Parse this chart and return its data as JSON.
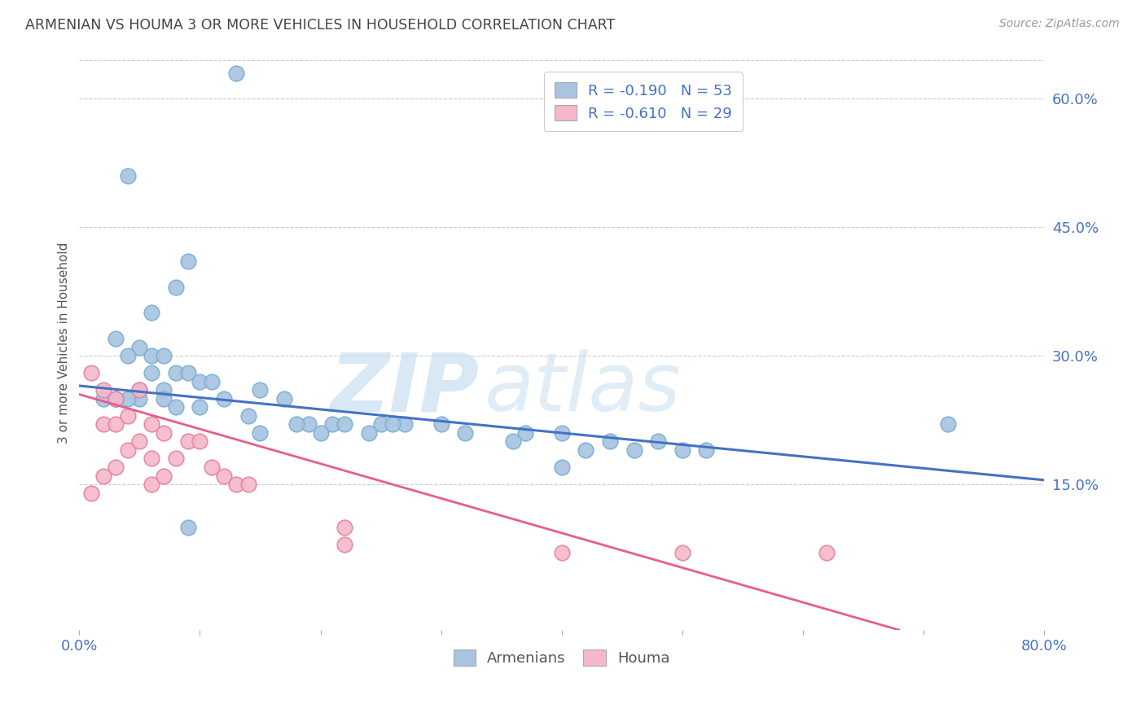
{
  "title": "ARMENIAN VS HOUMA 3 OR MORE VEHICLES IN HOUSEHOLD CORRELATION CHART",
  "source": "Source: ZipAtlas.com",
  "ylabel": "3 or more Vehicles in Household",
  "xlabel": "",
  "xmin": 0.0,
  "xmax": 0.8,
  "ymin": -0.02,
  "ymax": 0.65,
  "x_ticks": [
    0.0,
    0.1,
    0.2,
    0.3,
    0.4,
    0.5,
    0.6,
    0.7,
    0.8
  ],
  "x_tick_labels": [
    "0.0%",
    "",
    "",
    "",
    "",
    "",
    "",
    "",
    "80.0%"
  ],
  "y_tick_labels_right": [
    "15.0%",
    "30.0%",
    "45.0%",
    "60.0%"
  ],
  "y_ticks_right": [
    0.15,
    0.3,
    0.45,
    0.6
  ],
  "legend_armenian_r": "R = -0.190",
  "legend_armenian_n": "N = 53",
  "legend_houma_r": "R = -0.610",
  "legend_houma_n": "N = 29",
  "armenian_color": "#a8c4e0",
  "armenian_edge_color": "#7aafd4",
  "houma_color": "#f4b8c8",
  "houma_edge_color": "#e882a0",
  "armenian_line_color": "#4472c4",
  "houma_line_color": "#e85d8a",
  "armenian_scatter_x": [
    0.13,
    0.04,
    0.09,
    0.08,
    0.06,
    0.03,
    0.05,
    0.04,
    0.06,
    0.07,
    0.06,
    0.08,
    0.09,
    0.1,
    0.11,
    0.05,
    0.07,
    0.05,
    0.04,
    0.02,
    0.03,
    0.03,
    0.07,
    0.08,
    0.1,
    0.12,
    0.15,
    0.14,
    0.17,
    0.19,
    0.18,
    0.21,
    0.22,
    0.15,
    0.2,
    0.24,
    0.25,
    0.27,
    0.3,
    0.26,
    0.32,
    0.37,
    0.4,
    0.36,
    0.44,
    0.48,
    0.5,
    0.42,
    0.46,
    0.52,
    0.4,
    0.72,
    0.09
  ],
  "armenian_scatter_y": [
    0.63,
    0.51,
    0.41,
    0.38,
    0.35,
    0.32,
    0.31,
    0.3,
    0.3,
    0.3,
    0.28,
    0.28,
    0.28,
    0.27,
    0.27,
    0.26,
    0.26,
    0.25,
    0.25,
    0.25,
    0.25,
    0.25,
    0.25,
    0.24,
    0.24,
    0.25,
    0.26,
    0.23,
    0.25,
    0.22,
    0.22,
    0.22,
    0.22,
    0.21,
    0.21,
    0.21,
    0.22,
    0.22,
    0.22,
    0.22,
    0.21,
    0.21,
    0.21,
    0.2,
    0.2,
    0.2,
    0.19,
    0.19,
    0.19,
    0.19,
    0.17,
    0.22,
    0.1
  ],
  "houma_scatter_x": [
    0.01,
    0.01,
    0.02,
    0.02,
    0.02,
    0.03,
    0.03,
    0.03,
    0.04,
    0.04,
    0.05,
    0.05,
    0.06,
    0.06,
    0.06,
    0.07,
    0.07,
    0.08,
    0.09,
    0.1,
    0.11,
    0.12,
    0.13,
    0.14,
    0.22,
    0.22,
    0.4,
    0.5,
    0.62
  ],
  "houma_scatter_y": [
    0.28,
    0.14,
    0.26,
    0.22,
    0.16,
    0.25,
    0.22,
    0.17,
    0.23,
    0.19,
    0.26,
    0.2,
    0.22,
    0.18,
    0.15,
    0.21,
    0.16,
    0.18,
    0.2,
    0.2,
    0.17,
    0.16,
    0.15,
    0.15,
    0.1,
    0.08,
    0.07,
    0.07,
    0.07
  ],
  "armenian_trend_x0": 0.0,
  "armenian_trend_x1": 0.8,
  "armenian_trend_y0": 0.265,
  "armenian_trend_y1": 0.155,
  "houma_trend_x0": 0.0,
  "houma_trend_x1": 0.68,
  "houma_trend_y0": 0.255,
  "houma_trend_y1": -0.02,
  "background_color": "#ffffff",
  "grid_color": "#cccccc",
  "title_color": "#444444",
  "axis_color": "#4472c4",
  "label_color": "#555555",
  "dot_size": 180
}
